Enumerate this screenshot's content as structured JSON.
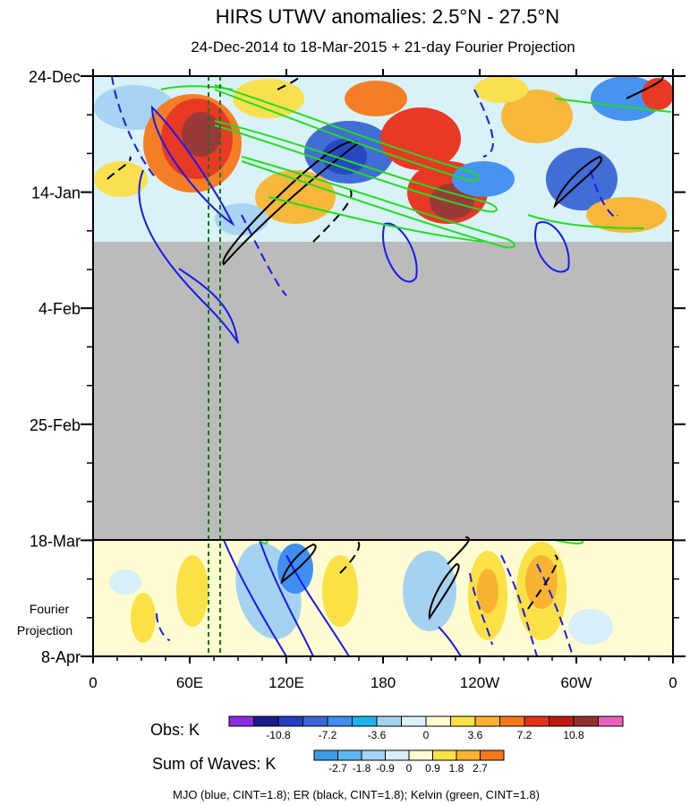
{
  "chart_data": {
    "type": "heatmap",
    "title": "HIRS UTWV anomalies: 2.5°N - 27.5°N",
    "subtitle": "24-Dec-2014 to 18-Mar-2015 + 21-day Fourier Projection",
    "x_tick_labels": [
      "0",
      "60E",
      "120E",
      "180",
      "120W",
      "60W",
      "0"
    ],
    "x_range": [
      "0",
      "360"
    ],
    "y_tick_labels": [
      "24-Dec",
      "14-Jan",
      "4-Feb",
      "25-Feb",
      "18-Mar",
      "8-Apr"
    ],
    "y_side_label": [
      "Fourier",
      "Projection"
    ],
    "obs_data_end": "~20-Jan",
    "missing_data_color": "#bbbbbb",
    "projection_divider": "18-Mar",
    "obs_colorbar": {
      "label": "Obs: K",
      "tick_labels": [
        "-10.8",
        "-7.2",
        "-3.6",
        "0",
        "3.6",
        "7.2",
        "10.8"
      ],
      "colors": [
        "#8a2be2",
        "#1a1a8c",
        "#1f3fbf",
        "#3a66d6",
        "#3f8ef0",
        "#1cb4ee",
        "#a6d2f2",
        "#d9f2f7",
        "#fefcd0",
        "#fbe046",
        "#f8b430",
        "#f5781a",
        "#e83018",
        "#c01818",
        "#963030",
        "#ea5fc0"
      ]
    },
    "waves_colorbar": {
      "label": "Sum of Waves: K",
      "tick_labels": [
        "-2.7",
        "-1.8",
        "-0.9",
        "0",
        "0.9",
        "1.8",
        "2.7"
      ],
      "colors": [
        "#3a9be8",
        "#5cb6f0",
        "#a4d3f5",
        "#d7eff9",
        "#fefbd2",
        "#fbe046",
        "#f8b430",
        "#f5781a"
      ]
    },
    "footnote": "MJO (blue, CINT=1.8); ER (black, CINT=1.8); Kelvin (green, CINT=1.8)",
    "contour_series": [
      {
        "name": "MJO",
        "color": "#1a1aee"
      },
      {
        "name": "ER",
        "color": "#000000"
      },
      {
        "name": "Kelvin",
        "color": "#22dd22"
      }
    ],
    "reference_lines": {
      "lon_deg": [
        72,
        79
      ],
      "color": "#117711",
      "style": "dashed"
    }
  }
}
